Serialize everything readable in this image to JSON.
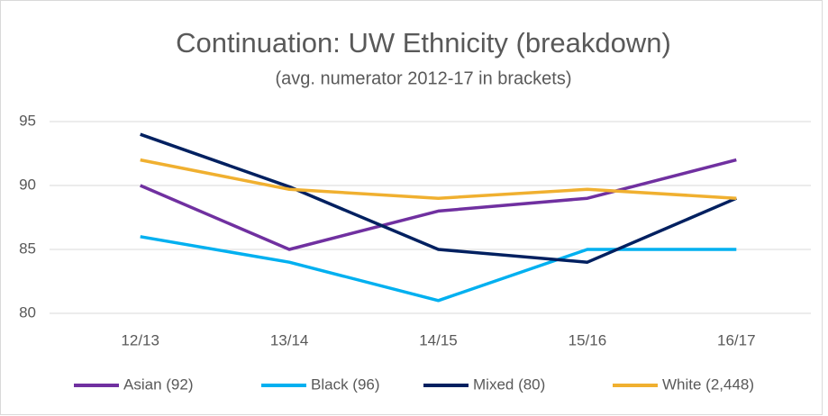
{
  "chart_data": {
    "type": "line",
    "title": "Continuation: UW Ethnicity (breakdown)",
    "subtitle": "(avg. numerator 2012-17 in brackets)",
    "categories": [
      "12/13",
      "13/14",
      "14/15",
      "15/16",
      "16/17"
    ],
    "series": [
      {
        "name": "Asian (92)",
        "color": "#7030a0",
        "values": [
          90,
          85,
          88,
          89,
          92
        ]
      },
      {
        "name": "Black (96)",
        "color": "#00b0f0",
        "values": [
          86,
          84,
          81,
          85,
          85
        ]
      },
      {
        "name": "Mixed (80)",
        "color": "#002060",
        "values": [
          94,
          89.9,
          85,
          84,
          89
        ]
      },
      {
        "name": "White (2,448)",
        "color": "#f0b030",
        "values": [
          92,
          89.7,
          89,
          89.7,
          89
        ]
      }
    ],
    "ylim": [
      80,
      95
    ],
    "yticks": [
      80,
      85,
      90,
      95
    ],
    "grid": true,
    "legend": "bottom"
  }
}
